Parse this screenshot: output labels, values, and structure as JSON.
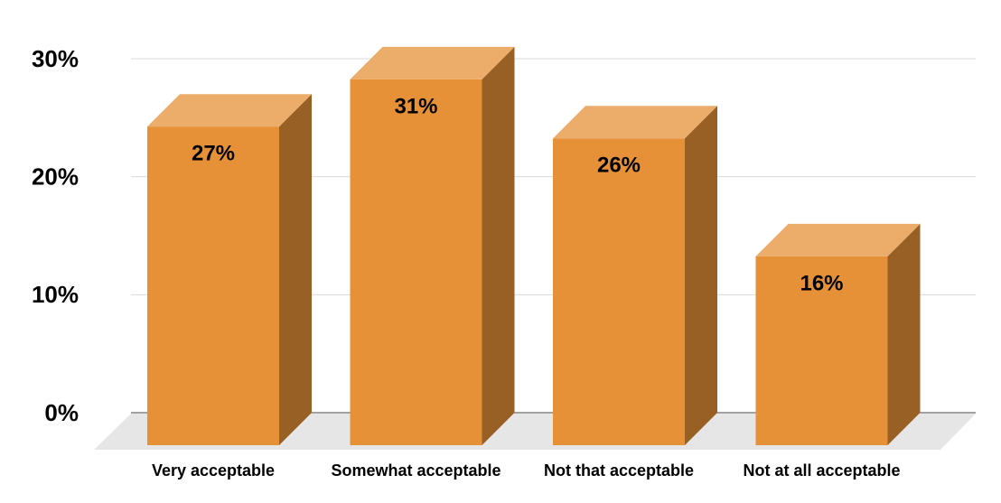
{
  "chart_data": {
    "type": "bar3d",
    "categories": [
      "Very acceptable",
      "Somewhat acceptable",
      "Not that acceptable",
      "Not at all acceptable"
    ],
    "values": [
      27,
      31,
      26,
      16
    ],
    "value_labels": [
      "27%",
      "31%",
      "26%",
      "16%"
    ],
    "color": "#e69138",
    "ylim": [
      0,
      30
    ],
    "yticks": [
      {
        "value": 0,
        "label": "0%"
      },
      {
        "value": 10,
        "label": "10%"
      },
      {
        "value": 20,
        "label": "20%"
      },
      {
        "value": 30,
        "label": "30%"
      }
    ],
    "grid": true
  }
}
